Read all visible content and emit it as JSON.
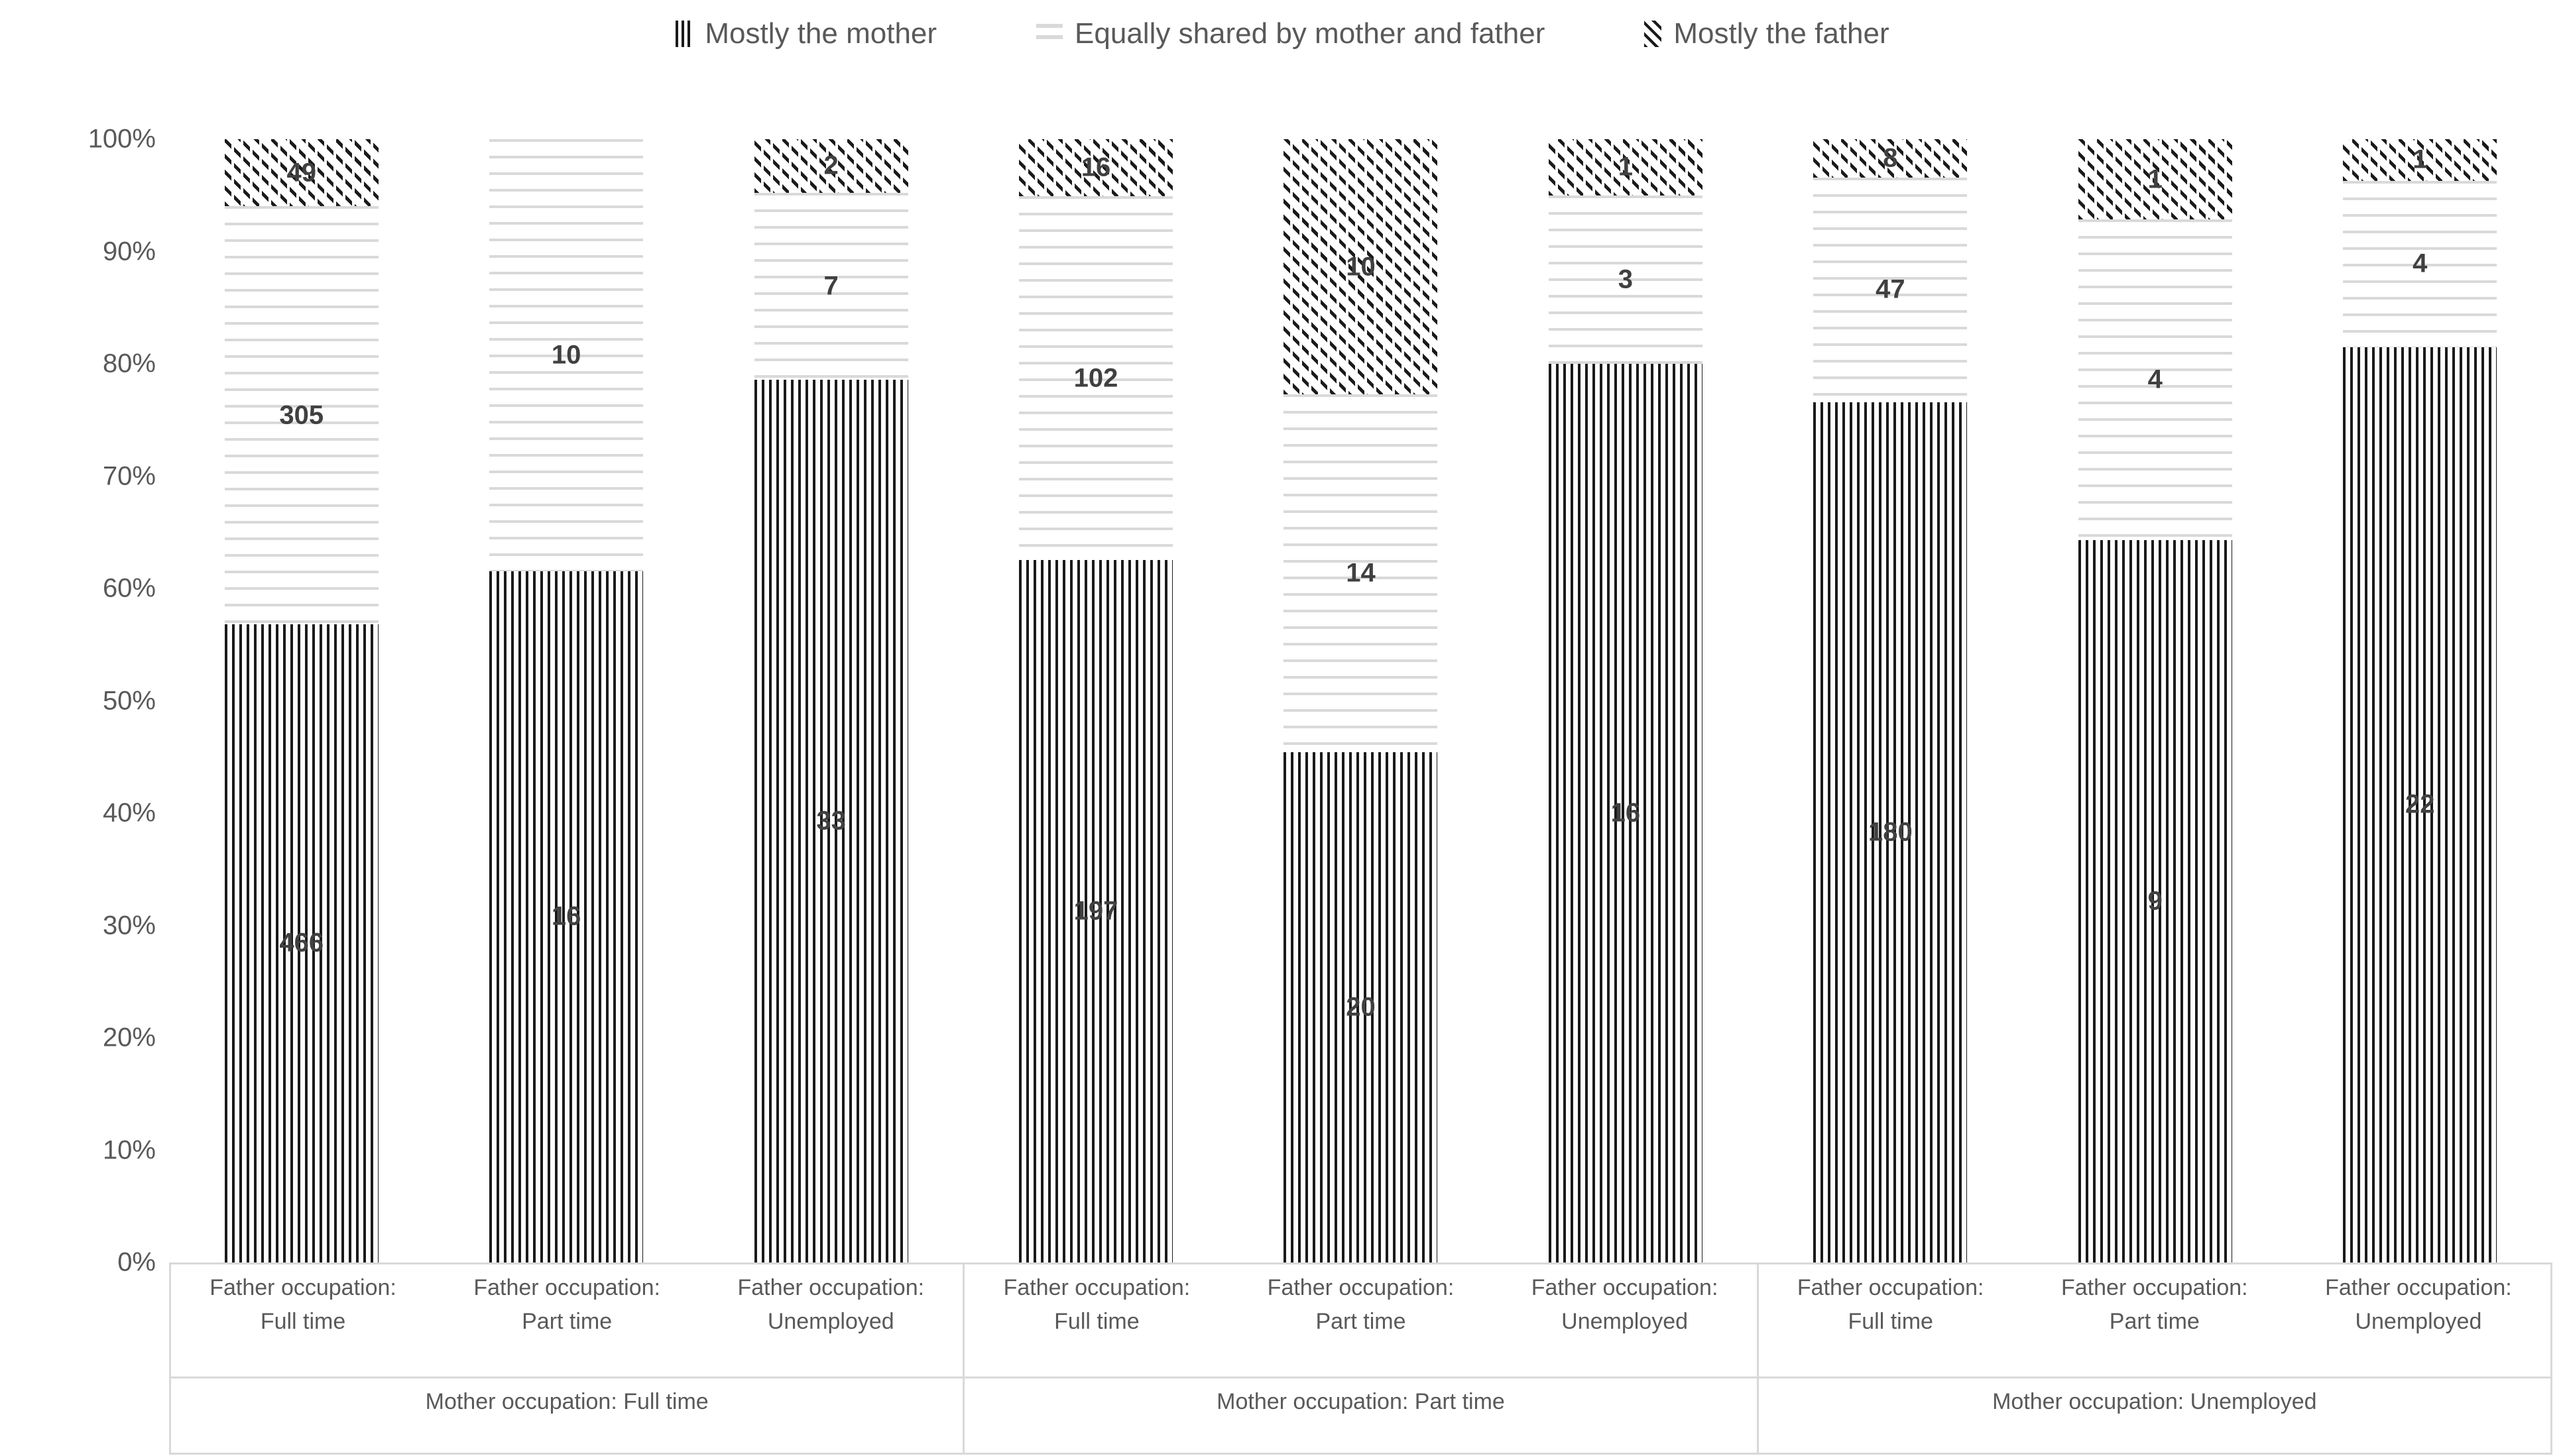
{
  "colors": {
    "series_black": "#1a1a1a",
    "light_gray": "#d9d9d9",
    "data_label_text": "#404040",
    "axis_text": "#595959"
  },
  "legend": {
    "items": [
      {
        "key": "mother",
        "pattern": "vertical-stripes",
        "label": "Mostly the mother"
      },
      {
        "key": "equally",
        "pattern": "horizontal-lines",
        "label": "Equally shared by mother and father"
      },
      {
        "key": "father",
        "pattern": "diagonal-stripes",
        "label": "Mostly the father"
      }
    ]
  },
  "chart_data": {
    "type": "bar",
    "variant": "100%-stacked-column",
    "legend_position": "top",
    "grid": false,
    "ylim": [
      "0%",
      "100%"
    ],
    "y_ticks_topdown": [
      "100%",
      "90%",
      "80%",
      "70%",
      "60%",
      "50%",
      "40%",
      "30%",
      "20%",
      "10%",
      "0%"
    ],
    "series_names": [
      "Mostly the mother",
      "Equally shared by mother and father",
      "Mostly the father"
    ],
    "series_order_bottom_to_top": [
      "mother",
      "equally",
      "father"
    ],
    "groups": [
      {
        "label": "Mother occupation: Full time",
        "bars": [
          {
            "x_label": "Father occupation:\nFull time",
            "values": {
              "mother": 466,
              "equally": 305,
              "father": 49
            }
          },
          {
            "x_label": "Father occupation:\nPart time",
            "values": {
              "mother": 16,
              "equally": 10,
              "father": 0
            }
          },
          {
            "x_label": "Father occupation:\nUnemployed",
            "values": {
              "mother": 33,
              "equally": 7,
              "father": 2
            }
          }
        ]
      },
      {
        "label": "Mother occupation: Part time",
        "bars": [
          {
            "x_label": "Father occupation:\nFull time",
            "values": {
              "mother": 197,
              "equally": 102,
              "father": 16
            }
          },
          {
            "x_label": "Father occupation:\nPart time",
            "values": {
              "mother": 20,
              "equally": 14,
              "father": 10
            }
          },
          {
            "x_label": "Father occupation:\nUnemployed",
            "values": {
              "mother": 16,
              "equally": 3,
              "father": 1
            }
          }
        ]
      },
      {
        "label": "Mother occupation: Unemployed",
        "bars": [
          {
            "x_label": "Father occupation:\nFull time",
            "values": {
              "mother": 180,
              "equally": 47,
              "father": 8
            }
          },
          {
            "x_label": "Father occupation:\nPart time",
            "values": {
              "mother": 9,
              "equally": 4,
              "father": 1
            }
          },
          {
            "x_label": "Father occupation:\nUnemployed",
            "values": {
              "mother": 22,
              "equally": 4,
              "father": 1
            }
          }
        ]
      }
    ]
  }
}
